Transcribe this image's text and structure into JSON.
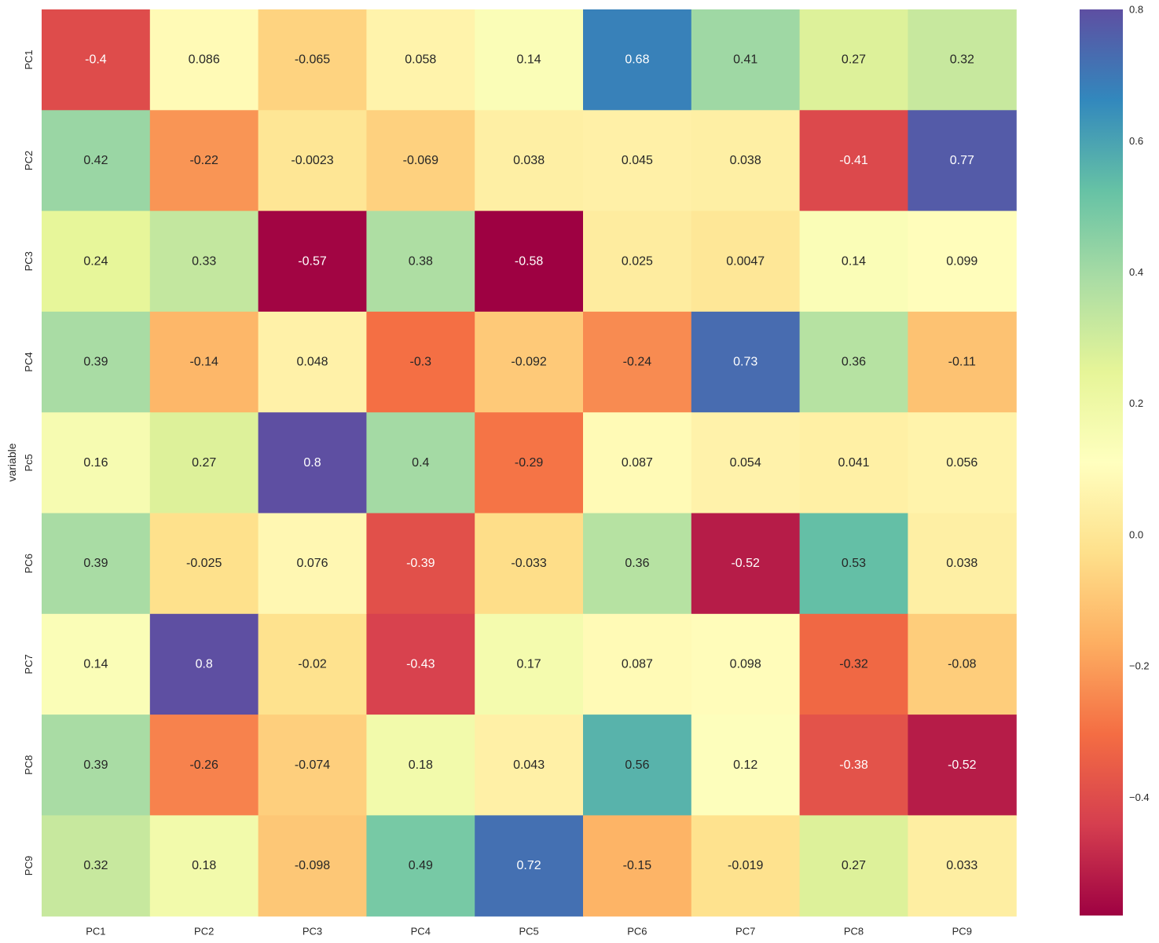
{
  "chart_data": {
    "type": "heatmap",
    "title": "",
    "xlabel": "",
    "ylabel": "variable",
    "x_categories": [
      "PC1",
      "PC2",
      "PC3",
      "PC4",
      "PC5",
      "PC6",
      "PC7",
      "PC8",
      "PC9"
    ],
    "y_categories": [
      "PC1",
      "PC2",
      "PC3",
      "PC4",
      "Pc5",
      "PC6",
      "PC7",
      "PC8",
      "PC9"
    ],
    "values": [
      [
        -0.4,
        0.086,
        -0.065,
        0.058,
        0.14,
        0.68,
        0.41,
        0.27,
        0.32
      ],
      [
        0.42,
        -0.22,
        -0.0023,
        -0.069,
        0.038,
        0.045,
        0.038,
        -0.41,
        0.77
      ],
      [
        0.24,
        0.33,
        -0.57,
        0.38,
        -0.58,
        0.025,
        0.0047,
        0.14,
        0.099
      ],
      [
        0.39,
        -0.14,
        0.048,
        -0.3,
        -0.092,
        -0.24,
        0.73,
        0.36,
        -0.11
      ],
      [
        0.16,
        0.27,
        0.8,
        0.4,
        -0.29,
        0.087,
        0.054,
        0.041,
        0.056
      ],
      [
        0.39,
        -0.025,
        0.076,
        -0.39,
        -0.033,
        0.36,
        -0.52,
        0.53,
        0.038
      ],
      [
        0.14,
        0.8,
        -0.02,
        -0.43,
        0.17,
        0.087,
        0.098,
        -0.32,
        -0.08
      ],
      [
        0.39,
        -0.26,
        -0.074,
        0.18,
        0.043,
        0.56,
        0.12,
        -0.38,
        -0.52
      ],
      [
        0.32,
        0.18,
        -0.098,
        0.49,
        0.72,
        -0.15,
        -0.019,
        0.27,
        0.033
      ]
    ],
    "labels": [
      [
        "-0.4",
        "0.086",
        "-0.065",
        "0.058",
        "0.14",
        "0.68",
        "0.41",
        "0.27",
        "0.32"
      ],
      [
        "0.42",
        "-0.22",
        "-0.0023",
        "-0.069",
        "0.038",
        "0.045",
        "0.038",
        "-0.41",
        "0.77"
      ],
      [
        "0.24",
        "0.33",
        "-0.57",
        "0.38",
        "-0.58",
        "0.025",
        "0.0047",
        "0.14",
        "0.099"
      ],
      [
        "0.39",
        "-0.14",
        "0.048",
        "-0.3",
        "-0.092",
        "-0.24",
        "0.73",
        "0.36",
        "-0.11"
      ],
      [
        "0.16",
        "0.27",
        "0.8",
        "0.4",
        "-0.29",
        "0.087",
        "0.054",
        "0.041",
        "0.056"
      ],
      [
        "0.39",
        "-0.025",
        "0.076",
        "-0.39",
        "-0.033",
        "0.36",
        "-0.52",
        "0.53",
        "0.038"
      ],
      [
        "0.14",
        "0.8",
        "-0.02",
        "-0.43",
        "0.17",
        "0.087",
        "0.098",
        "-0.32",
        "-0.08"
      ],
      [
        "0.39",
        "-0.26",
        "-0.074",
        "0.18",
        "0.043",
        "0.56",
        "0.12",
        "-0.38",
        "-0.52"
      ],
      [
        "0.32",
        "0.18",
        "-0.098",
        "0.49",
        "0.72",
        "-0.15",
        "-0.019",
        "0.27",
        "0.033"
      ]
    ],
    "vmin": -0.58,
    "vmax": 0.8,
    "colormap": "Spectral",
    "colorbar_ticks": [
      0.8,
      0.6,
      0.4,
      0.2,
      0.0,
      -0.2,
      -0.4
    ],
    "colorbar_tick_labels": [
      "0.8",
      "0.6",
      "0.4",
      "0.2",
      "0.0",
      "−0.2",
      "−0.4"
    ],
    "grid": false
  },
  "colors": {
    "spectral_stops": [
      "#9e0142",
      "#d53e4f",
      "#f46d43",
      "#fdae61",
      "#fee08b",
      "#ffffbf",
      "#e6f598",
      "#abdda4",
      "#66c2a5",
      "#3288bd",
      "#5e4fa2"
    ],
    "tick_text": "#262626",
    "annot_dark": "#262626",
    "annot_light": "#ffffff"
  }
}
